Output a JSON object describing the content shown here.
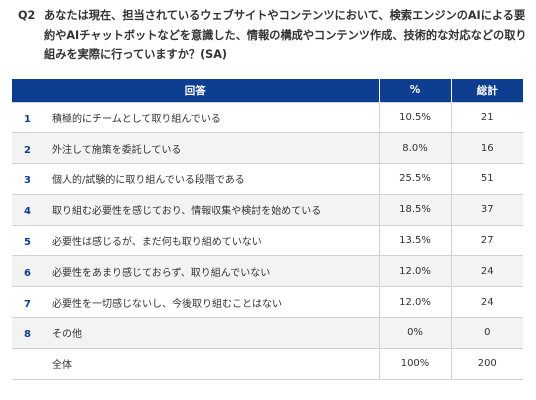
{
  "question": {
    "number": "Q2",
    "text": "あなたは現在、担当されているウェブサイトやコンテンツにおいて、検索エンジンのAIによる要約やAIチャットボットなどを意識した、情報の構成やコンテンツ作成、技術的な対応などの取り組みを実際に行っていますか？(SA)"
  },
  "table": {
    "headers": {
      "answer": "回答",
      "percent": "%",
      "total": "総計"
    },
    "rows": [
      {
        "num": "1",
        "label": "積極的にチームとして取り組んでいる",
        "percent": "10.5%",
        "total": "21"
      },
      {
        "num": "2",
        "label": "外注して施策を委託している",
        "percent": "8.0%",
        "total": "16"
      },
      {
        "num": "3",
        "label": "個人的/試験的に取り組んでいる段階である",
        "percent": "25.5%",
        "total": "51"
      },
      {
        "num": "4",
        "label": "取り組む必要性を感じており、情報収集や検討を始めている",
        "percent": "18.5%",
        "total": "37"
      },
      {
        "num": "5",
        "label": "必要性は感じるが、まだ何も取り組めていない",
        "percent": "13.5%",
        "total": "27"
      },
      {
        "num": "6",
        "label": "必要性をあまり感じておらず、取り組んでいない",
        "percent": "12.0%",
        "total": "24"
      },
      {
        "num": "7",
        "label": "必要性を一切感じないし、今後取り組むことはない",
        "percent": "12.0%",
        "total": "24"
      },
      {
        "num": "8",
        "label": "その他",
        "percent": "0%",
        "total": "0"
      }
    ],
    "total_row": {
      "label": "全体",
      "percent": "100%",
      "total": "200"
    }
  },
  "colors": {
    "header_bg": "#0E3E8F",
    "stripe": "#f3f3f3",
    "number": "#0E3E8F"
  }
}
